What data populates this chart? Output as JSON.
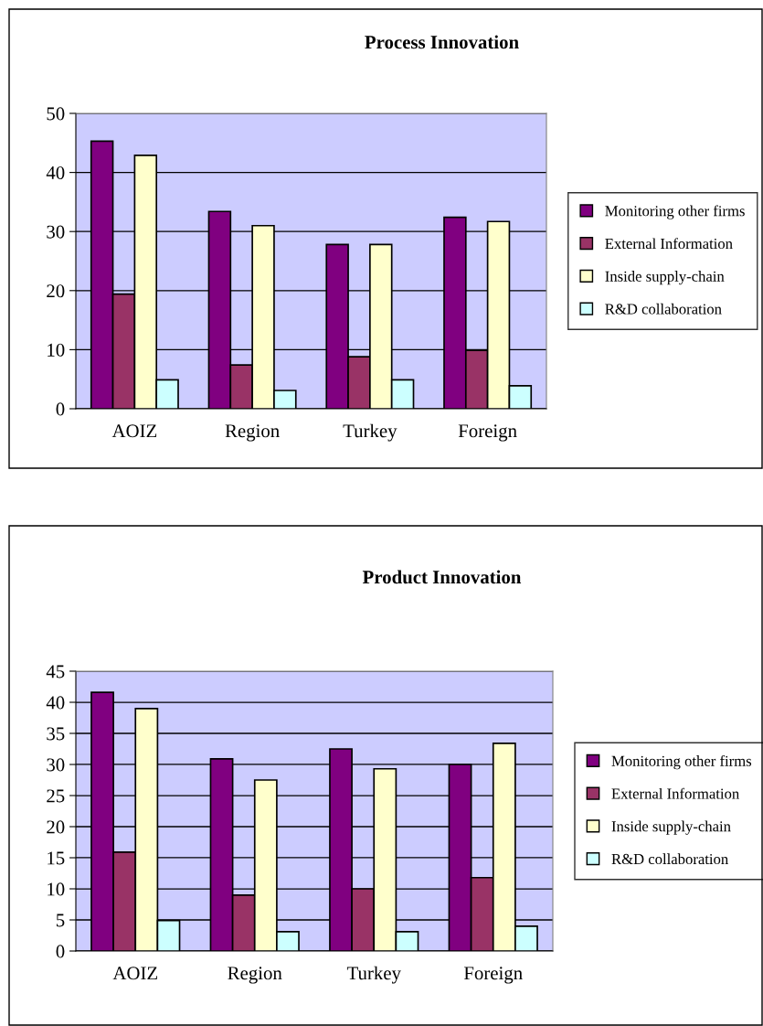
{
  "chart_data": [
    {
      "type": "bar",
      "title": "Process Innovation",
      "categories": [
        "AOIZ",
        "Region",
        "Turkey",
        "Foreign"
      ],
      "ylim": [
        0,
        50
      ],
      "yticks": [
        0,
        10,
        20,
        30,
        40,
        50
      ],
      "grid": "y",
      "legend": "right",
      "series": [
        {
          "name": "Monitoring other firms",
          "color": "#800080",
          "values": [
            45.3,
            33.4,
            27.8,
            32.4
          ]
        },
        {
          "name": "External Information",
          "color": "#993366",
          "values": [
            19.4,
            7.4,
            8.8,
            9.9
          ]
        },
        {
          "name": "Inside supply-chain",
          "color": "#ffffcc",
          "values": [
            42.9,
            31.0,
            27.8,
            31.7
          ]
        },
        {
          "name": "R&D collaboration",
          "color": "#ccffff",
          "values": [
            4.9,
            3.1,
            4.9,
            3.9
          ]
        }
      ]
    },
    {
      "type": "bar",
      "title": "Product Innovation",
      "categories": [
        "AOIZ",
        "Region",
        "Turkey",
        "Foreign"
      ],
      "ylim": [
        0,
        45
      ],
      "yticks": [
        0,
        5,
        10,
        15,
        20,
        25,
        30,
        35,
        40,
        45
      ],
      "grid": "y",
      "legend": "right",
      "series": [
        {
          "name": "Monitoring other firms",
          "color": "#800080",
          "values": [
            41.6,
            30.9,
            32.5,
            30.0
          ]
        },
        {
          "name": "External Information",
          "color": "#993366",
          "values": [
            15.9,
            9.0,
            10.0,
            11.8
          ]
        },
        {
          "name": "Inside supply-chain",
          "color": "#ffffcc",
          "values": [
            39.0,
            27.5,
            29.3,
            33.4
          ]
        },
        {
          "name": "R&D collaboration",
          "color": "#ccffff",
          "values": [
            4.9,
            3.1,
            3.1,
            4.0
          ]
        }
      ]
    }
  ]
}
